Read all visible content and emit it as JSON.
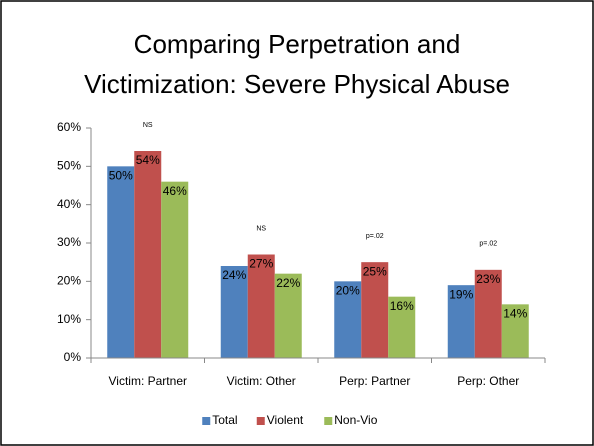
{
  "chart_data": {
    "type": "bar",
    "title": [
      "Comparing Perpetration and",
      "Victimization: Severe Physical Abuse"
    ],
    "categories": [
      "Victim: Partner",
      "Victim: Other",
      "Perp: Partner",
      "Perp: Other"
    ],
    "annotations": [
      "NS",
      "NS",
      "p=.02",
      "p=.02"
    ],
    "series": [
      {
        "name": "Total",
        "color": "#4f81bd",
        "values": [
          50,
          24,
          20,
          19
        ],
        "value_labels": [
          "50%",
          "24%",
          "20%",
          "19%"
        ]
      },
      {
        "name": "Violent",
        "color": "#c0504d",
        "values": [
          54,
          27,
          25,
          23
        ],
        "value_labels": [
          "54%",
          "27%",
          "25%",
          "23%"
        ]
      },
      {
        "name": "Non-Vio",
        "color": "#9bbb59",
        "values": [
          46,
          22,
          16,
          14
        ],
        "value_labels": [
          "46%",
          "22%",
          "16%",
          "14%"
        ]
      }
    ],
    "ylim": [
      0,
      60
    ],
    "yticks": [
      {
        "value": 0,
        "label": "0%"
      },
      {
        "value": 10,
        "label": "10%"
      },
      {
        "value": 20,
        "label": "20%"
      },
      {
        "value": 30,
        "label": "30%"
      },
      {
        "value": 40,
        "label": "40%"
      },
      {
        "value": 50,
        "label": "50%"
      },
      {
        "value": 60,
        "label": "60%"
      }
    ],
    "legend": "bottom"
  }
}
